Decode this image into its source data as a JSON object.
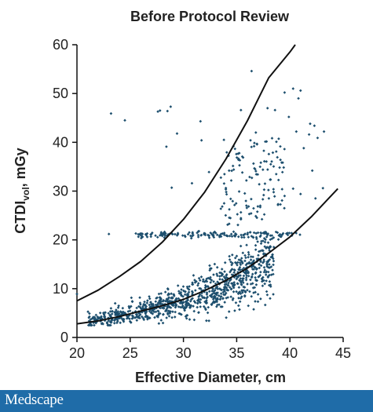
{
  "chart_data": {
    "type": "scatter",
    "title": "Before Protocol Review",
    "xlabel": "Effective Diameter, cm",
    "ylabel": {
      "main": "CTDI",
      "sub": "vol",
      "rest": ", mGy"
    },
    "xlim": [
      20,
      45
    ],
    "ylim": [
      0,
      60
    ],
    "xticks": [
      "20",
      "25",
      "30",
      "35",
      "40",
      "45"
    ],
    "yticks": [
      "0",
      "10",
      "20",
      "30",
      "40",
      "50",
      "60"
    ],
    "grid": false,
    "point_color": "#1d4f6e",
    "curve_color": "#111111",
    "curves": [
      {
        "x": [
          20,
          22,
          24,
          26,
          28,
          30,
          32,
          34,
          36,
          38,
          40,
          40.5
        ],
        "y": [
          7.5,
          9.7,
          12.5,
          15.6,
          19.5,
          24.2,
          29.8,
          36.6,
          44.4,
          53.2,
          58.5,
          60
        ]
      },
      {
        "x": [
          20,
          22,
          24,
          26,
          28,
          30,
          32,
          34,
          36,
          38,
          40,
          42,
          44.5
        ],
        "y": [
          2.8,
          3.4,
          4.3,
          5.4,
          6.5,
          7.8,
          9.6,
          11.7,
          14.2,
          17.3,
          20.6,
          24.7,
          30.5
        ]
      }
    ],
    "outliers": [
      [
        36.4,
        54.6
      ],
      [
        28.8,
        47.3
      ],
      [
        28.5,
        46.4
      ],
      [
        27.6,
        46.3
      ],
      [
        27.8,
        46.5
      ],
      [
        23.2,
        45.9
      ],
      [
        24.5,
        44.5
      ],
      [
        31.6,
        44.3
      ],
      [
        29.4,
        41.8
      ],
      [
        28.4,
        39.1
      ],
      [
        31.7,
        40.4
      ],
      [
        33.8,
        40.5
      ],
      [
        34.7,
        39.2
      ],
      [
        39.5,
        50.2
      ],
      [
        40.3,
        51.0
      ],
      [
        41.0,
        50.6
      ],
      [
        40.8,
        49.0
      ],
      [
        39.9,
        45.2
      ],
      [
        40.6,
        42.2
      ],
      [
        41.9,
        43.8
      ],
      [
        42.3,
        43.4
      ],
      [
        42.6,
        40.9
      ],
      [
        43.2,
        42.2
      ],
      [
        41.8,
        41.6
      ],
      [
        41.3,
        38.8
      ],
      [
        42.1,
        34.2
      ],
      [
        41.0,
        29.4
      ],
      [
        42.4,
        28.5
      ],
      [
        39.5,
        29.0
      ],
      [
        40.3,
        30.5
      ],
      [
        28.9,
        30.7
      ],
      [
        30.8,
        31.6
      ],
      [
        32.4,
        33.9
      ],
      [
        23.0,
        21.2
      ],
      [
        20.0,
        8.9
      ],
      [
        29.3,
        7.4
      ],
      [
        29.6,
        4.9
      ],
      [
        29.2,
        4.2
      ],
      [
        30.3,
        3.9
      ],
      [
        30.3,
        4.5
      ],
      [
        34.9,
        12.9
      ],
      [
        36.1,
        13.4
      ],
      [
        38.1,
        14.3
      ],
      [
        36.5,
        14.0
      ],
      [
        43.1,
        30.6
      ],
      [
        37.6,
        36.1
      ],
      [
        38.2,
        35.5
      ],
      [
        36.3,
        40.4
      ],
      [
        36.8,
        42.0
      ],
      [
        35.4,
        46.6
      ],
      [
        37.9,
        47.0
      ],
      [
        38.6,
        46.6
      ]
    ]
  },
  "footer": {
    "brand": "Medscape",
    "color": "#1f6ca8"
  }
}
